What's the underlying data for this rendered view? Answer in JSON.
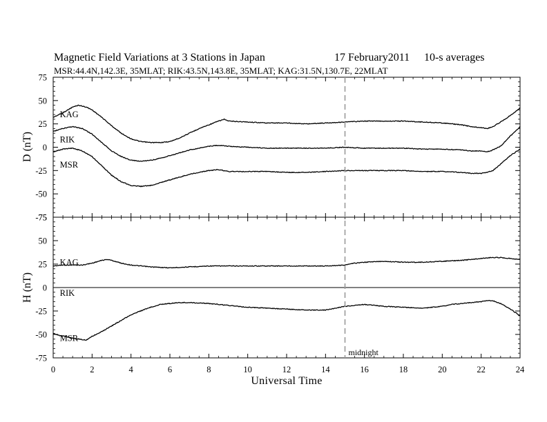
{
  "header": {
    "title": "Magnetic Field Variations at 3 Stations in Japan",
    "date": "17 February2011",
    "averaging": "10-s averages",
    "subtitle": "MSR:44.4N,142.3E, 35MLAT;  RIK:43.5N,143.8E, 35MLAT;  KAG:31.5N,130.7E, 22MLAT"
  },
  "annotation": {
    "text": "midnight",
    "x": 15
  },
  "chart_data": [
    {
      "type": "line",
      "panel": "top",
      "xlabel": "",
      "ylabel": "D (nT)",
      "xlim": [
        0,
        24
      ],
      "ylim": [
        -75,
        75
      ],
      "yticks": [
        75,
        50,
        25,
        0,
        -25,
        -50,
        -75
      ],
      "series": [
        {
          "name": "KAG",
          "x": [
            0,
            0.5,
            1,
            1.3,
            1.7,
            2,
            2.5,
            3,
            3.5,
            4,
            4.5,
            5,
            5.5,
            6,
            6.5,
            7,
            7.5,
            8,
            8.5,
            8.8,
            9,
            10,
            11,
            12,
            13,
            14,
            15,
            16,
            17,
            18,
            19,
            20,
            21,
            21.5,
            22,
            22.3,
            22.6,
            23,
            23.5,
            24
          ],
          "y": [
            32,
            37,
            43,
            45,
            43,
            40,
            32,
            23,
            15,
            9,
            6,
            5,
            5,
            6,
            10,
            15,
            20,
            24,
            28,
            30,
            28,
            27,
            26,
            26,
            25,
            26,
            27,
            28,
            28,
            28,
            27,
            26,
            24,
            22,
            21,
            20,
            22,
            27,
            34,
            42
          ]
        },
        {
          "name": "RIK",
          "x": [
            0,
            0.5,
            1,
            1.5,
            2,
            2.5,
            3,
            3.5,
            4,
            4.5,
            5,
            5.5,
            6,
            6.5,
            7,
            7.5,
            8,
            8.5,
            9,
            10,
            11,
            12,
            13,
            14,
            15,
            16,
            17,
            18,
            19,
            20,
            21,
            21.5,
            22,
            22.3,
            22.6,
            23,
            23.5,
            24
          ],
          "y": [
            17,
            20,
            22,
            20,
            14,
            5,
            -4,
            -10,
            -14,
            -15,
            -14,
            -12,
            -9,
            -6,
            -3,
            -1,
            1,
            2,
            1,
            0,
            -1,
            -1,
            -1,
            -1,
            0,
            -1,
            -1,
            -1,
            -2,
            -2,
            -3,
            -4,
            -4,
            -5,
            -3,
            1,
            12,
            22
          ]
        },
        {
          "name": "MSR",
          "x": [
            0,
            0.5,
            1,
            1.5,
            2,
            2.5,
            3,
            3.5,
            4,
            4.5,
            5,
            5.5,
            6,
            6.5,
            7,
            7.5,
            8,
            8.5,
            9,
            10,
            11,
            12,
            13,
            14,
            15,
            16,
            17,
            18,
            19,
            20,
            21,
            21.5,
            22,
            22.3,
            22.6,
            23,
            23.5,
            24
          ],
          "y": [
            -5,
            -2,
            -1,
            -4,
            -10,
            -20,
            -30,
            -37,
            -41,
            -42,
            -41,
            -38,
            -35,
            -32,
            -29,
            -27,
            -25,
            -24,
            -26,
            -26,
            -26,
            -27,
            -27,
            -26,
            -25,
            -25,
            -25,
            -25,
            -26,
            -26,
            -27,
            -28,
            -28,
            -27,
            -25,
            -18,
            -9,
            -2
          ]
        }
      ],
      "series_labels": [
        {
          "text": "KAG",
          "x": 0.2,
          "y": 35
        },
        {
          "text": "RIK",
          "x": 0.2,
          "y": 8
        },
        {
          "text": "MSR",
          "x": 0.2,
          "y": -19
        }
      ]
    },
    {
      "type": "line",
      "panel": "bottom",
      "xlabel": "Universal Time",
      "ylabel": "H (nT)",
      "xlim": [
        0,
        24
      ],
      "ylim": [
        -75,
        75
      ],
      "yticks": [
        75,
        50,
        25,
        0,
        -25,
        -50,
        -75
      ],
      "xticks": [
        0,
        2,
        4,
        6,
        8,
        10,
        12,
        14,
        16,
        18,
        20,
        22,
        24
      ],
      "series": [
        {
          "name": "KAG",
          "x": [
            0,
            0.5,
            1,
            1.5,
            2,
            2.5,
            2.8,
            3,
            3.5,
            4,
            4.5,
            5,
            6,
            7,
            8,
            9,
            10,
            11,
            12,
            13,
            14,
            15,
            15.5,
            16,
            17,
            18,
            19,
            20,
            21,
            22,
            22.5,
            23,
            23.5,
            24
          ],
          "y": [
            23,
            24,
            24,
            24,
            26,
            29,
            30,
            29,
            26,
            24,
            23,
            22,
            21,
            22,
            23,
            23,
            23,
            23,
            23,
            23,
            23,
            24,
            26,
            27,
            28,
            27,
            27,
            28,
            29,
            31,
            32,
            32,
            31,
            30
          ]
        },
        {
          "name": "RIK",
          "x": [
            0,
            24
          ],
          "y": [
            0,
            0
          ]
        },
        {
          "name": "MSR",
          "x": [
            0,
            0.3,
            0.6,
            1,
            1.3,
            1.7,
            2,
            2.5,
            3,
            3.5,
            4,
            4.5,
            5,
            5.5,
            6,
            6.5,
            7,
            8,
            9,
            10,
            11,
            12,
            13,
            14,
            14.5,
            15,
            15.5,
            16,
            16.5,
            17,
            18,
            19,
            20,
            20.5,
            21,
            21.5,
            22,
            22.3,
            22.6,
            23,
            23.5,
            24
          ],
          "y": [
            -49,
            -51,
            -52,
            -54,
            -55,
            -56,
            -52,
            -47,
            -41,
            -35,
            -29,
            -25,
            -21,
            -18,
            -17,
            -16,
            -16,
            -17,
            -19,
            -21,
            -22,
            -23,
            -24,
            -24,
            -22,
            -20,
            -19,
            -18,
            -19,
            -20,
            -21,
            -22,
            -20,
            -18,
            -17,
            -16,
            -15,
            -14,
            -14,
            -17,
            -23,
            -30
          ]
        }
      ],
      "series_labels": [
        {
          "text": "KAG",
          "x": 0.2,
          "y": 27
        },
        {
          "text": "RIK",
          "x": 0.2,
          "y": -6
        },
        {
          "text": "MSR",
          "x": 0.2,
          "y": -54
        }
      ]
    }
  ]
}
